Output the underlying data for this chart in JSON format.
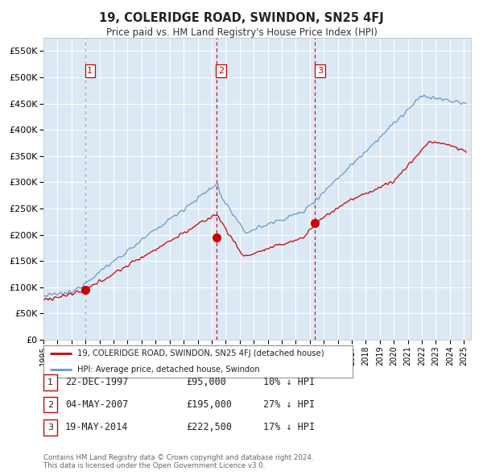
{
  "title": "19, COLERIDGE ROAD, SWINDON, SN25 4FJ",
  "subtitle": "Price paid vs. HM Land Registry's House Price Index (HPI)",
  "legend_property": "19, COLERIDGE ROAD, SWINDON, SN25 4FJ (detached house)",
  "legend_hpi": "HPI: Average price, detached house, Swindon",
  "property_color": "#cc0000",
  "hpi_color": "#6699cc",
  "background_color": "#dce9f5",
  "grid_color": "#ffffff",
  "purchases": [
    {
      "date_num": 1997.97,
      "price": 95000,
      "label": "1",
      "vline_color": "#aaaaaa",
      "vline_style": "dashed"
    },
    {
      "date_num": 2007.33,
      "price": 195000,
      "label": "2",
      "vline_color": "#cc0000",
      "vline_style": "dashed"
    },
    {
      "date_num": 2014.38,
      "price": 222500,
      "label": "3",
      "vline_color": "#cc0000",
      "vline_style": "dashed"
    }
  ],
  "table_rows": [
    {
      "label": "1",
      "date": "22-DEC-1997",
      "price": "£95,000",
      "hpi_diff": "10% ↓ HPI"
    },
    {
      "label": "2",
      "date": "04-MAY-2007",
      "price": "£195,000",
      "hpi_diff": "27% ↓ HPI"
    },
    {
      "label": "3",
      "date": "19-MAY-2014",
      "price": "£222,500",
      "hpi_diff": "17% ↓ HPI"
    }
  ],
  "footer": "Contains HM Land Registry data © Crown copyright and database right 2024.\nThis data is licensed under the Open Government Licence v3.0."
}
